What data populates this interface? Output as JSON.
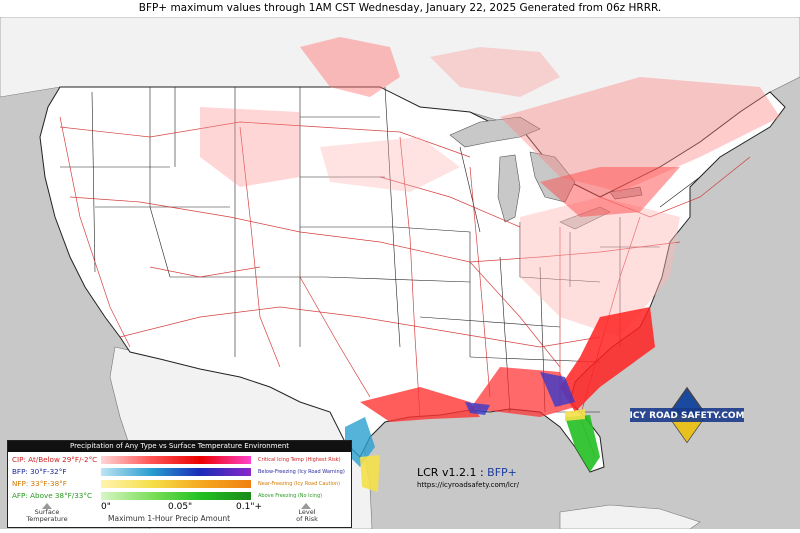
{
  "title": "BFP+ maximum values through 1AM CST Wednesday, January 22, 2025 Generated from 06z HRRR.",
  "map": {
    "region": "Continental United States",
    "layers": [
      "state-boundaries",
      "interstate-highways",
      "great-lakes",
      "precip-type-shading"
    ]
  },
  "legend": {
    "header": "Precipitation of Any Type vs Surface Temperature Environment",
    "rows": [
      {
        "label": "CIP: At/Below 29°F/-2°C",
        "desc": "Critical Icing Temp (Highest Risk)",
        "color": "#cc2222",
        "desc_color": "#cc2222",
        "grad": [
          "#ffd6d6",
          "#ff5555",
          "#ee0000",
          "#ff44cc"
        ]
      },
      {
        "label": "BFP: 30°F-32°F",
        "desc": "Below-Freezing (Icy Road Warning)",
        "color": "#1a2a99",
        "desc_color": "#2a2aa0",
        "grad": [
          "#bfe4f2",
          "#2a9fd0",
          "#1a2ab8",
          "#8a28c8"
        ]
      },
      {
        "label": "NFP: 33°F-38°F",
        "desc": "Near-Freezing (Icy Road Caution)",
        "color": "#d07a00",
        "desc_color": "#d07a00",
        "grad": [
          "#fff3b0",
          "#f5e04a",
          "#f5a820",
          "#f08010"
        ]
      },
      {
        "label": "AFP: Above 38°F/33°C",
        "desc": "Above Freezing (No Icing)",
        "color": "#2a9a22",
        "desc_color": "#2a9a22",
        "grad": [
          "#d8f5c8",
          "#7ee05a",
          "#22c022",
          "#1a8a1a"
        ]
      }
    ],
    "ticks": [
      "0\"",
      "0.05\"",
      "0.1\"+"
    ],
    "axis_label": "Maximum 1-Hour Precip Amount",
    "left_note": "Surface\nTemperature",
    "right_note": "Level\nof Risk"
  },
  "version_label": "LCR v1.2.1 :",
  "product_label": "BFP+",
  "website": "https://icyroadsafety.com/lcr/",
  "logo_text": "ICY ROAD SAFETY.COM",
  "colors": {
    "ocean": "#c8c8c8",
    "land": "#ffffff",
    "canada": "#f2f2f2",
    "highway": "#d02020",
    "border": "#111111"
  }
}
